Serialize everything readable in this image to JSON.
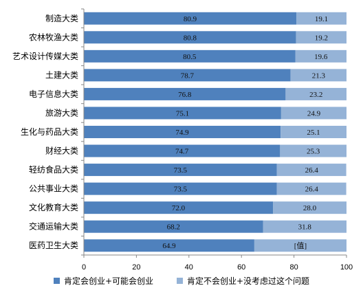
{
  "chart_data": {
    "type": "bar",
    "orientation": "horizontal",
    "stacked": true,
    "categories": [
      "制造大类",
      "农林牧渔大类",
      "艺术设计传媒大类",
      "土建大类",
      "电子信息大类",
      "旅游大类",
      "生化与药品大类",
      "财经大类",
      "轻纺食品大类",
      "公共事业大类",
      "文化教育大类",
      "交通运输大类",
      "医药卫生大类"
    ],
    "series": [
      {
        "name": "肯定会创业+可能会创业",
        "color": "#4f81bd",
        "values": [
          80.9,
          80.8,
          80.5,
          78.7,
          76.8,
          75.1,
          74.9,
          74.7,
          73.5,
          73.5,
          72.0,
          68.2,
          64.9
        ],
        "labels": [
          "80.9",
          "80.8",
          "80.5",
          "78.7",
          "76.8",
          "75.1",
          "74.9",
          "74.7",
          "73.5",
          "73.5",
          "72.0",
          "68.2",
          "64.9"
        ]
      },
      {
        "name": "肯定不会创业+没考虑过这个问题",
        "color": "#95b3d7",
        "values": [
          19.1,
          19.2,
          19.6,
          21.3,
          23.2,
          24.9,
          25.1,
          25.3,
          26.4,
          26.4,
          28.0,
          31.8,
          35.1
        ],
        "labels": [
          "19.1",
          "19.2",
          "19.6",
          "21.3",
          "23.2",
          "24.9",
          "25.1",
          "25.3",
          "26.4",
          "26.4",
          "28.0",
          "31.8",
          "[值]"
        ]
      }
    ],
    "xlim": [
      0,
      100
    ],
    "xticks": [
      "0",
      "20",
      "40",
      "60",
      "80",
      "100"
    ],
    "grid": false,
    "legend_position": "bottom"
  }
}
